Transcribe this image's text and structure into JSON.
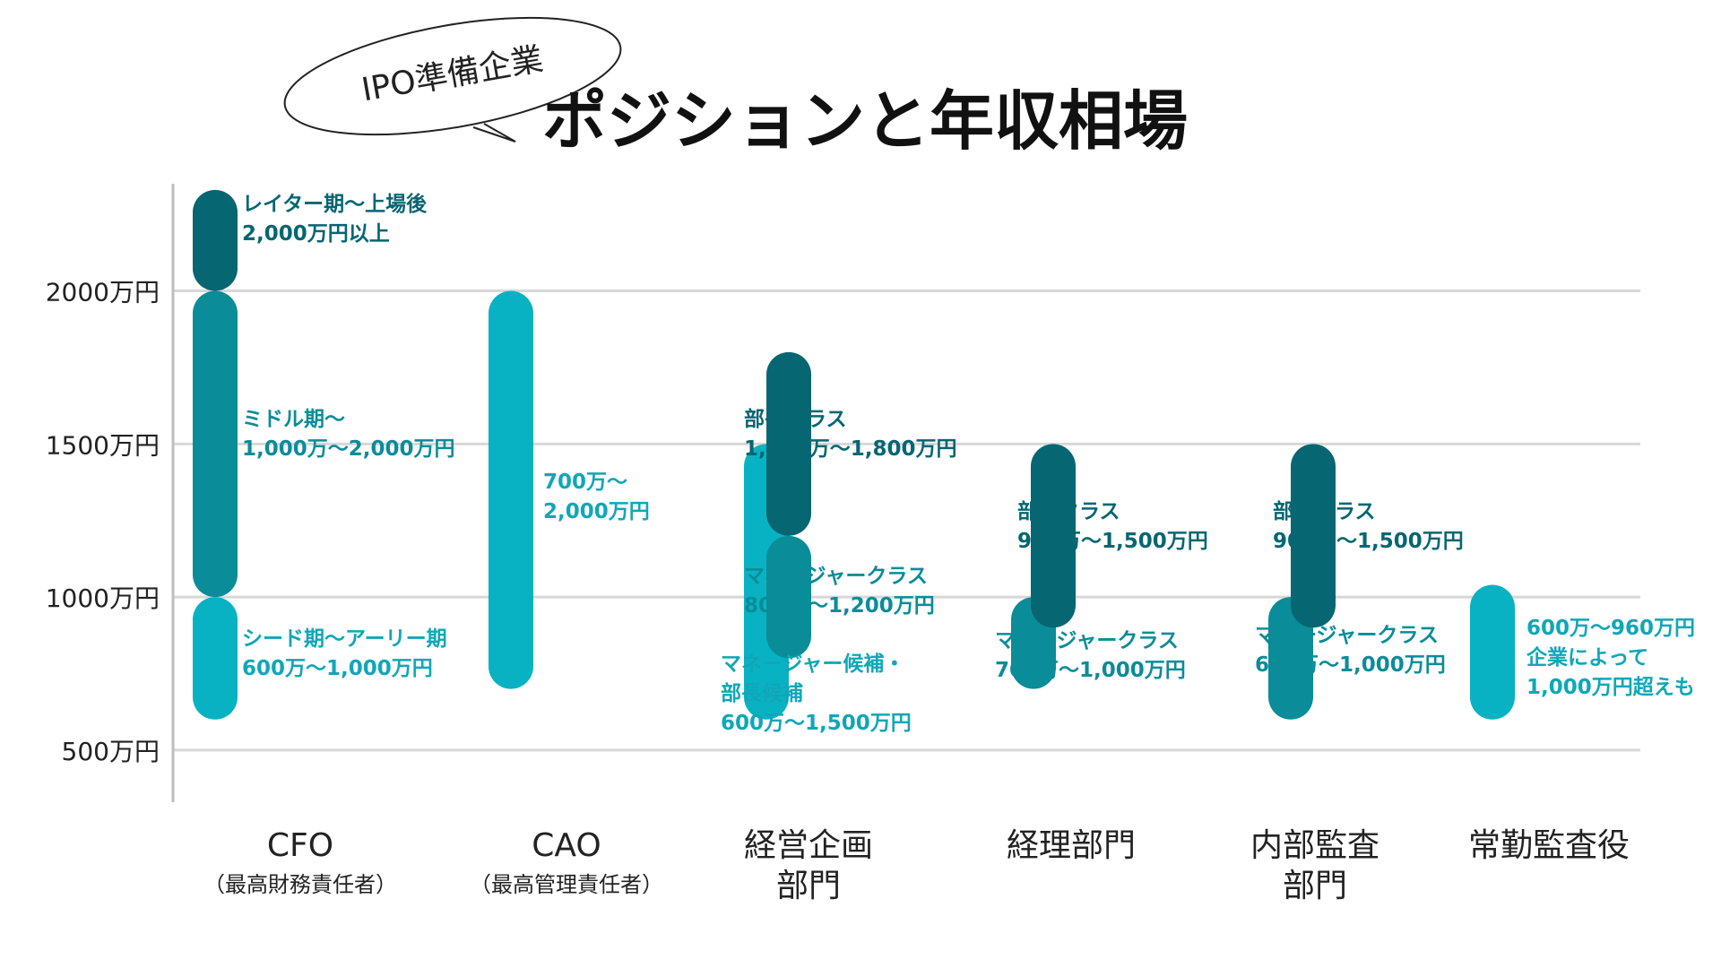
{
  "header": {
    "badge": "IPO準備企業",
    "title": "ポジションと年収相場"
  },
  "colors": {
    "dark": "#066672",
    "mid": "#0b8c99",
    "light": "#09b2c3",
    "label_dark": "#066672",
    "label_mid": "#0b8c99",
    "label_light": "#0fa7b8",
    "grid": "#d7d7d7",
    "axis": "#bdbdbd",
    "text": "#222222"
  },
  "chart_data": {
    "type": "range-bar",
    "title": "ポジションと年収相場",
    "ylim": [
      330,
      2350
    ],
    "yticks": [
      {
        "value": 2000,
        "label": "2000万円"
      },
      {
        "value": 1500,
        "label": "1500万円"
      },
      {
        "value": 1000,
        "label": "1000万円"
      },
      {
        "value": 500,
        "label": "500万円"
      }
    ],
    "grid": true,
    "categories": [
      {
        "line1": "CFO",
        "line2": "（最高財務責任者）"
      },
      {
        "line1": "CAO",
        "line2": "（最高管理責任者）"
      },
      {
        "line1": "経営企画",
        "line2": "部門"
      },
      {
        "line1": "経理部門",
        "line2": ""
      },
      {
        "line1": "内部監査",
        "line2": "部門"
      },
      {
        "line1": "常勤監査役",
        "line2": ""
      }
    ],
    "ranges": [
      {
        "category": 0,
        "min": 2000,
        "max": 2330,
        "tone": "dark",
        "lines": [
          "レイター期～上場後",
          "2,000万円以上"
        ]
      },
      {
        "category": 0,
        "min": 1000,
        "max": 2000,
        "tone": "mid",
        "lines": [
          "ミドル期～",
          "1,000万～2,000万円"
        ]
      },
      {
        "category": 0,
        "min": 600,
        "max": 1000,
        "tone": "light",
        "lines": [
          "シード期～アーリー期",
          "600万～1,000万円"
        ]
      },
      {
        "category": 1,
        "min": 700,
        "max": 2000,
        "tone": "light",
        "lines": [
          "700万～",
          "2,000万円"
        ]
      },
      {
        "category": 2,
        "min": 600,
        "max": 1500,
        "tone": "light",
        "lines": [
          "マネージャー候補・",
          "部長候補",
          "600万～1,500万円"
        ]
      },
      {
        "category": 2,
        "min": 800,
        "max": 1200,
        "tone": "mid",
        "lines": [
          "マネージャークラス",
          "800万～1,200万円"
        ]
      },
      {
        "category": 2,
        "min": 1200,
        "max": 1800,
        "tone": "dark",
        "lines": [
          "部長クラス",
          "1,200万～1,800万円"
        ]
      },
      {
        "category": 3,
        "min": 700,
        "max": 1000,
        "tone": "mid",
        "lines": [
          "マネージャークラス",
          "700万～1,000万円"
        ]
      },
      {
        "category": 3,
        "min": 900,
        "max": 1500,
        "tone": "dark",
        "lines": [
          "部長クラス",
          "900万～1,500万円"
        ]
      },
      {
        "category": 4,
        "min": 600,
        "max": 1000,
        "tone": "mid",
        "lines": [
          "マネージャークラス",
          "600万～1,000万円"
        ]
      },
      {
        "category": 4,
        "min": 900,
        "max": 1500,
        "tone": "dark",
        "lines": [
          "部長クラス",
          "900万～1,500万円"
        ]
      },
      {
        "category": 5,
        "min": 600,
        "max": 1040,
        "tone": "light",
        "lines": [
          "600万～960万円",
          "企業によって",
          "1,000万円超えも"
        ]
      }
    ]
  }
}
